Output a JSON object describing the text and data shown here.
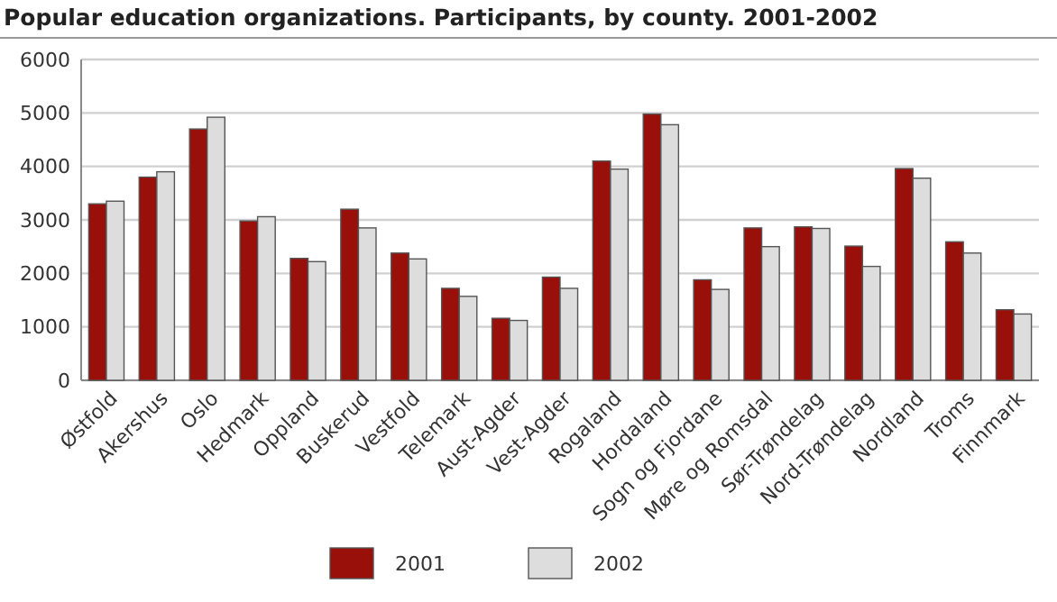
{
  "chart_data": {
    "type": "bar",
    "title": "Popular education organizations. Participants, by county. 2001-2002",
    "categories": [
      "Østfold",
      "Akershus",
      "Oslo",
      "Hedmark",
      "Oppland",
      "Buskerud",
      "Vestfold",
      "Telemark",
      "Aust-Agder",
      "Vest-Agder",
      "Rogaland",
      "Hordaland",
      "Sogn og Fjordane",
      "Møre og Romsdal",
      "Sør-Trøndelag",
      "Nord-Trøndelag",
      "Nordland",
      "Troms",
      "Finnmark"
    ],
    "series": [
      {
        "name": "2001",
        "color": "#990f0a",
        "values": [
          3300,
          3800,
          4700,
          2980,
          2280,
          3200,
          2380,
          1720,
          1160,
          1930,
          4100,
          4980,
          1880,
          2850,
          2870,
          2510,
          3960,
          2590,
          1320
        ]
      },
      {
        "name": "2002",
        "color": "#dddddd",
        "values": [
          3350,
          3900,
          4920,
          3060,
          2220,
          2850,
          2270,
          1570,
          1120,
          1720,
          3950,
          4780,
          1700,
          2500,
          2840,
          2130,
          3780,
          2380,
          1240
        ]
      }
    ],
    "ylim": [
      0,
      6000
    ],
    "yticks": [
      0,
      1000,
      2000,
      3000,
      4000,
      5000,
      6000
    ],
    "grid": "y",
    "legend": "bottom"
  }
}
